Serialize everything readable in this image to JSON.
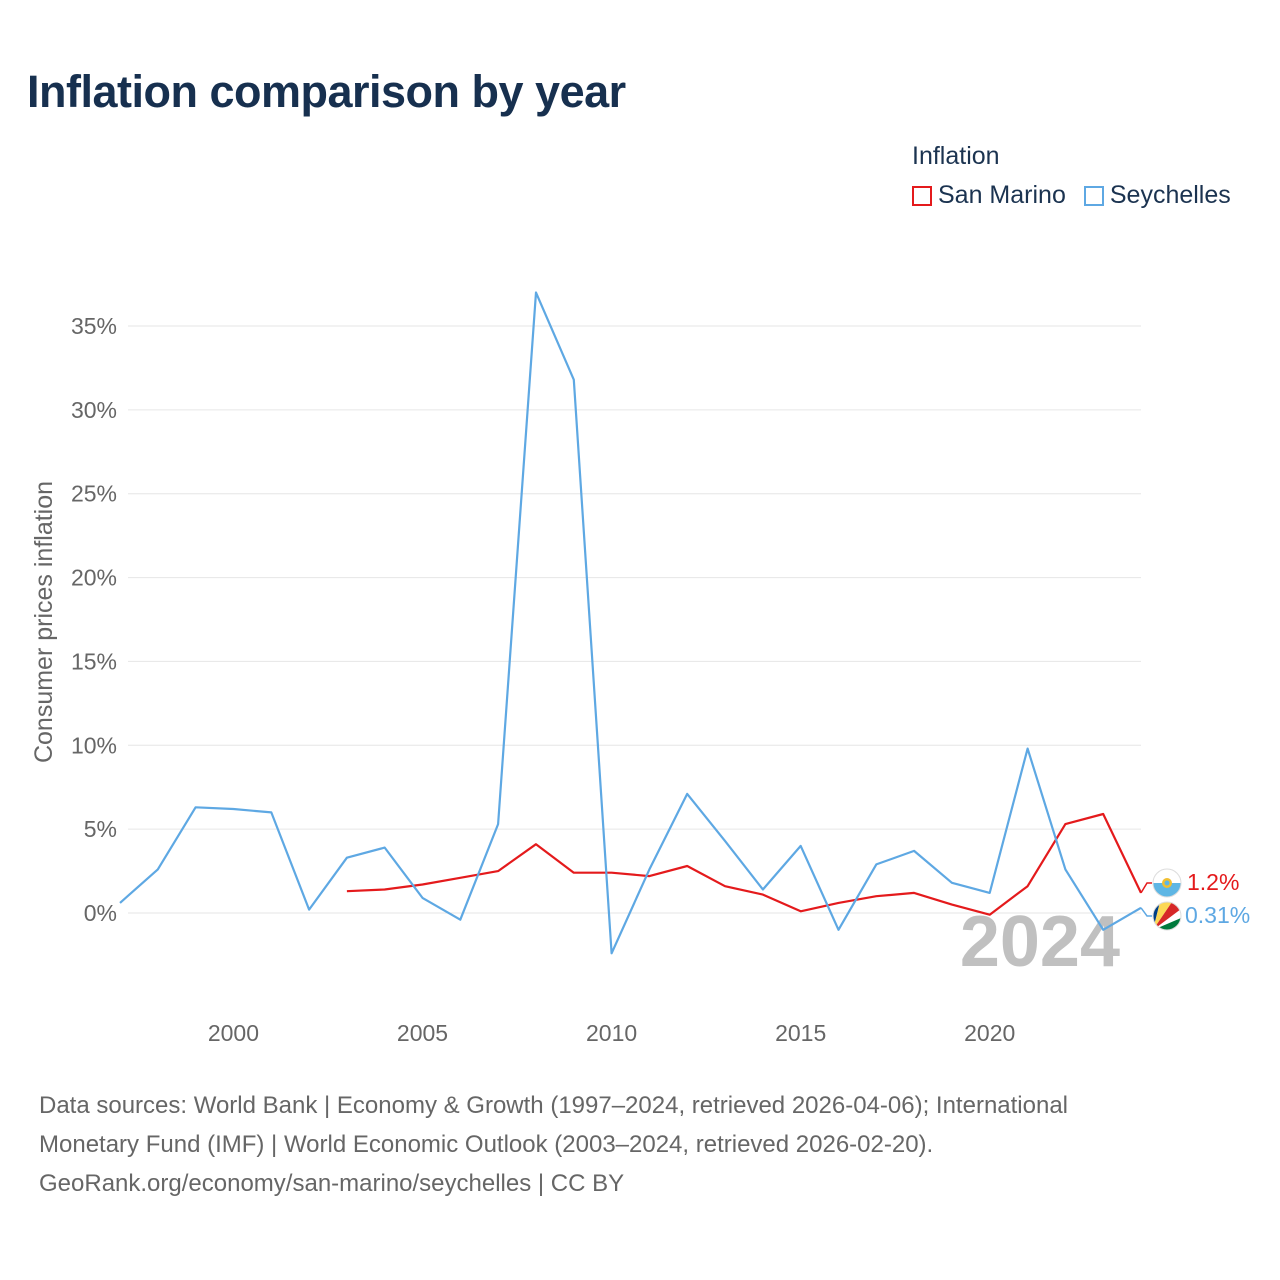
{
  "chart_data": {
    "type": "line",
    "title": "Inflation comparison by year",
    "ylabel": "Consumer prices inflation",
    "xlabel": "",
    "xlim": [
      1997,
      2024
    ],
    "ylim": [
      -5,
      37
    ],
    "x_ticks": [
      2000,
      2005,
      2010,
      2015,
      2020
    ],
    "x_tick_labels": [
      "2000",
      "2005",
      "2010",
      "2015",
      "2020"
    ],
    "y_ticks": [
      0,
      5,
      10,
      15,
      20,
      25,
      30,
      35
    ],
    "y_tick_labels": [
      "0%",
      "5%",
      "10%",
      "15%",
      "20%",
      "25%",
      "30%",
      "35%"
    ],
    "legend_title": "Inflation",
    "legend_position": "top-right",
    "year_watermark": "2024",
    "series": [
      {
        "name": "San Marino",
        "color": "#e41a1c",
        "end_label": "1.2%",
        "x": [
          2003,
          2004,
          2005,
          2006,
          2007,
          2008,
          2009,
          2010,
          2011,
          2012,
          2013,
          2014,
          2015,
          2016,
          2017,
          2018,
          2019,
          2020,
          2021,
          2022,
          2023,
          2024
        ],
        "values": [
          1.3,
          1.4,
          1.7,
          2.1,
          2.5,
          4.1,
          2.4,
          2.4,
          2.2,
          2.8,
          1.6,
          1.1,
          0.1,
          0.6,
          1.0,
          1.2,
          0.5,
          -0.1,
          1.6,
          5.3,
          5.9,
          1.2
        ]
      },
      {
        "name": "Seychelles",
        "color": "#5ea8e3",
        "end_label": "0.31%",
        "x": [
          1997,
          1998,
          1999,
          2000,
          2001,
          2002,
          2003,
          2004,
          2005,
          2006,
          2007,
          2008,
          2009,
          2010,
          2011,
          2012,
          2013,
          2014,
          2015,
          2016,
          2017,
          2018,
          2019,
          2020,
          2021,
          2022,
          2023,
          2024
        ],
        "values": [
          0.6,
          2.6,
          6.3,
          6.2,
          6.0,
          0.2,
          3.3,
          3.9,
          0.9,
          -0.4,
          5.3,
          37.0,
          31.8,
          -2.4,
          2.6,
          7.1,
          4.3,
          1.4,
          4.0,
          -1.0,
          2.9,
          3.7,
          1.8,
          1.2,
          9.8,
          2.6,
          -1.0,
          0.31
        ]
      }
    ]
  },
  "source": {
    "line1": "Data sources: World Bank | Economy & Growth (1997–2024, retrieved 2026-04-06); International",
    "line2": "Monetary Fund (IMF) | World Economic Outlook (2003–2024, retrieved 2026-02-20).",
    "line3": "GeoRank.org/economy/san-marino/seychelles | CC BY"
  },
  "colors": {
    "title": "#17304f",
    "grid": "#e6e6e6",
    "axis_text": "#666666",
    "watermark": "#c0c0c0"
  }
}
